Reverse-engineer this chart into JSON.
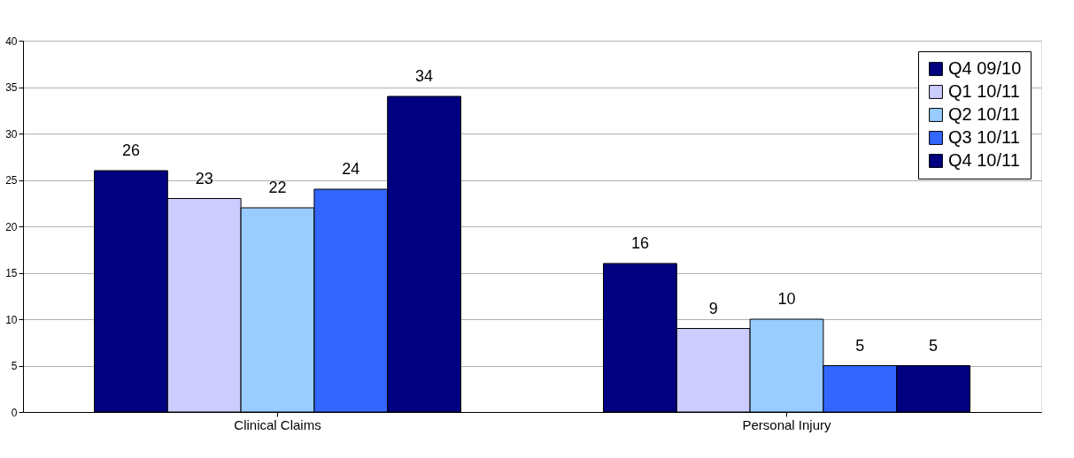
{
  "chart_data": {
    "type": "bar",
    "categories": [
      "Clinical Claims",
      "Personal Injury"
    ],
    "series": [
      {
        "name": "Q4 09/10",
        "color": "#000080",
        "values": [
          26,
          16
        ]
      },
      {
        "name": "Q1 10/11",
        "color": "#ccccff",
        "values": [
          23,
          9
        ]
      },
      {
        "name": "Q2 10/11",
        "color": "#99ccff",
        "values": [
          22,
          10
        ]
      },
      {
        "name": "Q3 10/11",
        "color": "#3366ff",
        "values": [
          24,
          5
        ]
      },
      {
        "name": "Q4 10/11",
        "color": "#000080",
        "values": [
          34,
          5
        ]
      }
    ],
    "ylim": [
      0,
      40
    ],
    "yticks": [
      0,
      5,
      10,
      15,
      20,
      25,
      30,
      35,
      40
    ],
    "grid": "y",
    "legend": "top right",
    "data_labels": true
  }
}
